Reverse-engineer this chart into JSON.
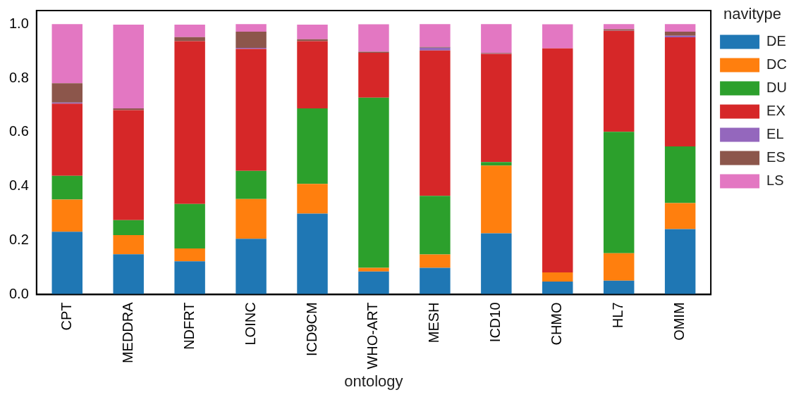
{
  "chart_data": {
    "type": "bar",
    "stacked": true,
    "xlabel": "ontology",
    "legend_title": "navitype",
    "legend": "right",
    "grid": false,
    "categories": [
      "CPT",
      "MEDDRA",
      "NDFRT",
      "LOINC",
      "ICD9CM",
      "WHO-ART",
      "MESH",
      "ICD10",
      "CHMO",
      "HL7",
      "OMIM"
    ],
    "ylim": [
      0,
      1.05
    ],
    "yticks": [
      {
        "value": 0,
        "label": "0.0"
      },
      {
        "value": 0.2,
        "label": "0.2"
      },
      {
        "value": 0.4,
        "label": "0.4"
      },
      {
        "value": 0.6,
        "label": "0.6"
      },
      {
        "value": 0.8,
        "label": "0.8"
      },
      {
        "value": 1,
        "label": "1.0"
      }
    ],
    "series": [
      {
        "name": "DE",
        "color": "#1f77b4",
        "values": [
          0.232,
          0.149,
          0.123,
          0.206,
          0.299,
          0.085,
          0.099,
          0.226,
          0.048,
          0.051,
          0.242
        ]
      },
      {
        "name": "DC",
        "color": "#ff7f0e",
        "values": [
          0.119,
          0.071,
          0.047,
          0.147,
          0.11,
          0.014,
          0.049,
          0.251,
          0.034,
          0.102,
          0.096
        ]
      },
      {
        "name": "DU",
        "color": "#2ca02c",
        "values": [
          0.088,
          0.055,
          0.165,
          0.104,
          0.279,
          0.629,
          0.217,
          0.013,
          null,
          0.449,
          0.21
        ]
      },
      {
        "name": "EX",
        "color": "#d62728",
        "values": [
          0.267,
          0.407,
          0.602,
          0.451,
          0.249,
          0.166,
          0.537,
          0.4,
          0.828,
          0.373,
          0.403
        ]
      },
      {
        "name": "EL",
        "color": "#9467bd",
        "values": [
          0.004,
          null,
          null,
          0.004,
          null,
          null,
          0.011,
          0.001,
          0,
          0.001,
          0.006
        ]
      },
      {
        "name": "ES",
        "color": "#8c564b",
        "values": [
          0.071,
          0.006,
          0.015,
          0.06,
          0.007,
          0.004,
          0.002,
          0.002,
          0,
          0.005,
          0.015
        ]
      },
      {
        "name": "LS",
        "color": "#e377c2",
        "values": [
          0.219,
          0.31,
          0.046,
          0.028,
          0.054,
          0.101,
          0.085,
          0.107,
          0.089,
          0.019,
          0.028
        ]
      }
    ]
  }
}
